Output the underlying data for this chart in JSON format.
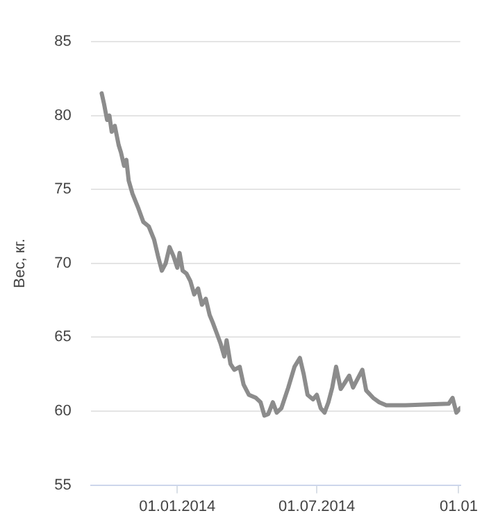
{
  "chart_data": {
    "type": "line",
    "ylabel": "Вес, кг.",
    "x": [
      "2013-09-25",
      "2013-09-28",
      "2013-10-02",
      "2013-10-05",
      "2013-10-08",
      "2013-10-12",
      "2013-10-17",
      "2013-10-20",
      "2013-10-24",
      "2013-10-27",
      "2013-10-30",
      "2013-11-04",
      "2013-11-11",
      "2013-11-18",
      "2013-11-25",
      "2013-12-02",
      "2013-12-07",
      "2013-12-12",
      "2013-12-17",
      "2013-12-22",
      "2013-12-27",
      "2014-01-01",
      "2014-01-04",
      "2014-01-08",
      "2014-01-13",
      "2014-01-18",
      "2014-01-23",
      "2014-01-28",
      "2014-02-02",
      "2014-02-07",
      "2014-02-12",
      "2014-02-16",
      "2014-02-21",
      "2014-02-26",
      "2014-03-03",
      "2014-03-06",
      "2014-03-11",
      "2014-03-16",
      "2014-03-23",
      "2014-03-28",
      "2014-04-04",
      "2014-04-13",
      "2014-04-19",
      "2014-04-24",
      "2014-04-29",
      "2014-05-05",
      "2014-05-10",
      "2014-05-16",
      "2014-05-25",
      "2014-06-02",
      "2014-06-09",
      "2014-06-14",
      "2014-06-19",
      "2014-06-26",
      "2014-07-01",
      "2014-07-06",
      "2014-07-11",
      "2014-07-16",
      "2014-07-21",
      "2014-07-26",
      "2014-08-01",
      "2014-08-06",
      "2014-08-12",
      "2014-08-17",
      "2014-08-23",
      "2014-08-29",
      "2014-09-03",
      "2014-09-12",
      "2014-09-20",
      "2014-09-29",
      "2014-10-24",
      "2014-12-19",
      "2014-12-24",
      "2014-12-29",
      "2015-01-03"
    ],
    "series": [
      {
        "color": "#8c8c8c",
        "values": [
          81.5,
          80.8,
          79.7,
          80.0,
          78.9,
          79.3,
          78.0,
          77.5,
          76.6,
          77.0,
          75.6,
          74.7,
          73.8,
          72.8,
          72.5,
          71.6,
          70.5,
          69.5,
          70.0,
          71.1,
          70.5,
          69.7,
          70.7,
          69.5,
          69.3,
          68.8,
          67.9,
          68.3,
          67.2,
          67.6,
          66.5,
          66.0,
          65.3,
          64.6,
          63.7,
          64.8,
          63.2,
          62.8,
          63.0,
          61.8,
          61.1,
          60.9,
          60.6,
          59.7,
          59.8,
          60.6,
          59.9,
          60.2,
          61.6,
          63.0,
          63.6,
          62.5,
          61.1,
          60.8,
          61.1,
          60.2,
          59.9,
          60.6,
          61.6,
          63.0,
          61.5,
          61.9,
          62.4,
          61.6,
          62.2,
          62.8,
          61.4,
          60.9,
          60.6,
          60.4,
          60.4,
          60.5,
          60.9,
          59.9,
          60.2
        ]
      }
    ],
    "xlim": [
      "2013-09-11",
      "2015-01-03"
    ],
    "xticks": [
      {
        "value": "2014-01-01",
        "label": "01.01.2014"
      },
      {
        "value": "2014-07-01",
        "label": "01.07.2014"
      },
      {
        "value": "2015-01-01",
        "label": "01.01"
      }
    ],
    "ylim": [
      55,
      85
    ],
    "yticks": [
      55,
      60,
      65,
      70,
      75,
      80,
      85
    ],
    "grid": "y",
    "legend": false,
    "marker": "none",
    "line_style": "solid"
  }
}
